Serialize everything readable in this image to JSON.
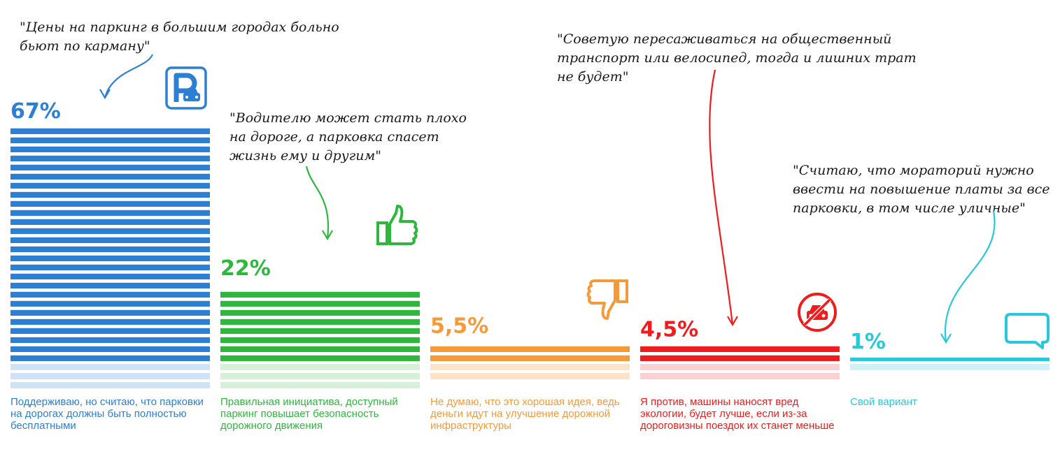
{
  "chart_data": {
    "type": "bar",
    "categories": [
      "Поддерживаю, но считаю, что парковки на дорогах должны быть полностью бесплатными",
      "Правильная инициатива, доступный паркинг повышает безопасность дорожного движения",
      "Не думаю, что это хорошая идея, ведь деньги идут на улучшение дорожной инфраструктуры",
      "Я против, машины наносят вред экологии, будет лучше, если из-за дороговизны поездок их станет меньше",
      "Свой вариант"
    ],
    "values": [
      67,
      22,
      5.5,
      4.5,
      1
    ],
    "value_labels": [
      "67%",
      "22%",
      "5,5%",
      "4,5%",
      "1%"
    ],
    "unit": "%",
    "ylim": [
      0,
      70
    ],
    "colors": [
      "#2d7fd3",
      "#2db83d",
      "#f59a38",
      "#ee1c1c",
      "#27c8dc"
    ],
    "light_colors": [
      "#cfe3f7",
      "#d6f1d7",
      "#fde3c8",
      "#fbd0d0",
      "#cdf1f6"
    ],
    "icons": [
      "parking-icon",
      "thumbs-up-icon",
      "thumbs-down-icon",
      "no-car-icon",
      "speech-bubble-icon"
    ],
    "grid": false,
    "legend": "none"
  },
  "quotes": [
    {
      "lines": [
        "\"Цены на паркинг в большим городах больно",
        "бьют по карману\""
      ],
      "color": "#2d7fd3"
    },
    {
      "lines": [
        "\"Водителю может стать плохо",
        "на дороге, а парковка спасет",
        "жизнь ему и другим\""
      ],
      "color": "#2db83d"
    },
    {
      "lines": [
        "\"Советую пересаживаться на общественный",
        "транспорт или велосипед, тогда и лишних трат",
        "не будет\""
      ],
      "color": "#ee1c1c"
    },
    {
      "lines": [
        "\"Считаю, что мораторий нужно",
        "ввести на повышение платы за все",
        "парковки, в том числе уличные\""
      ],
      "color": "#27c8dc"
    }
  ]
}
